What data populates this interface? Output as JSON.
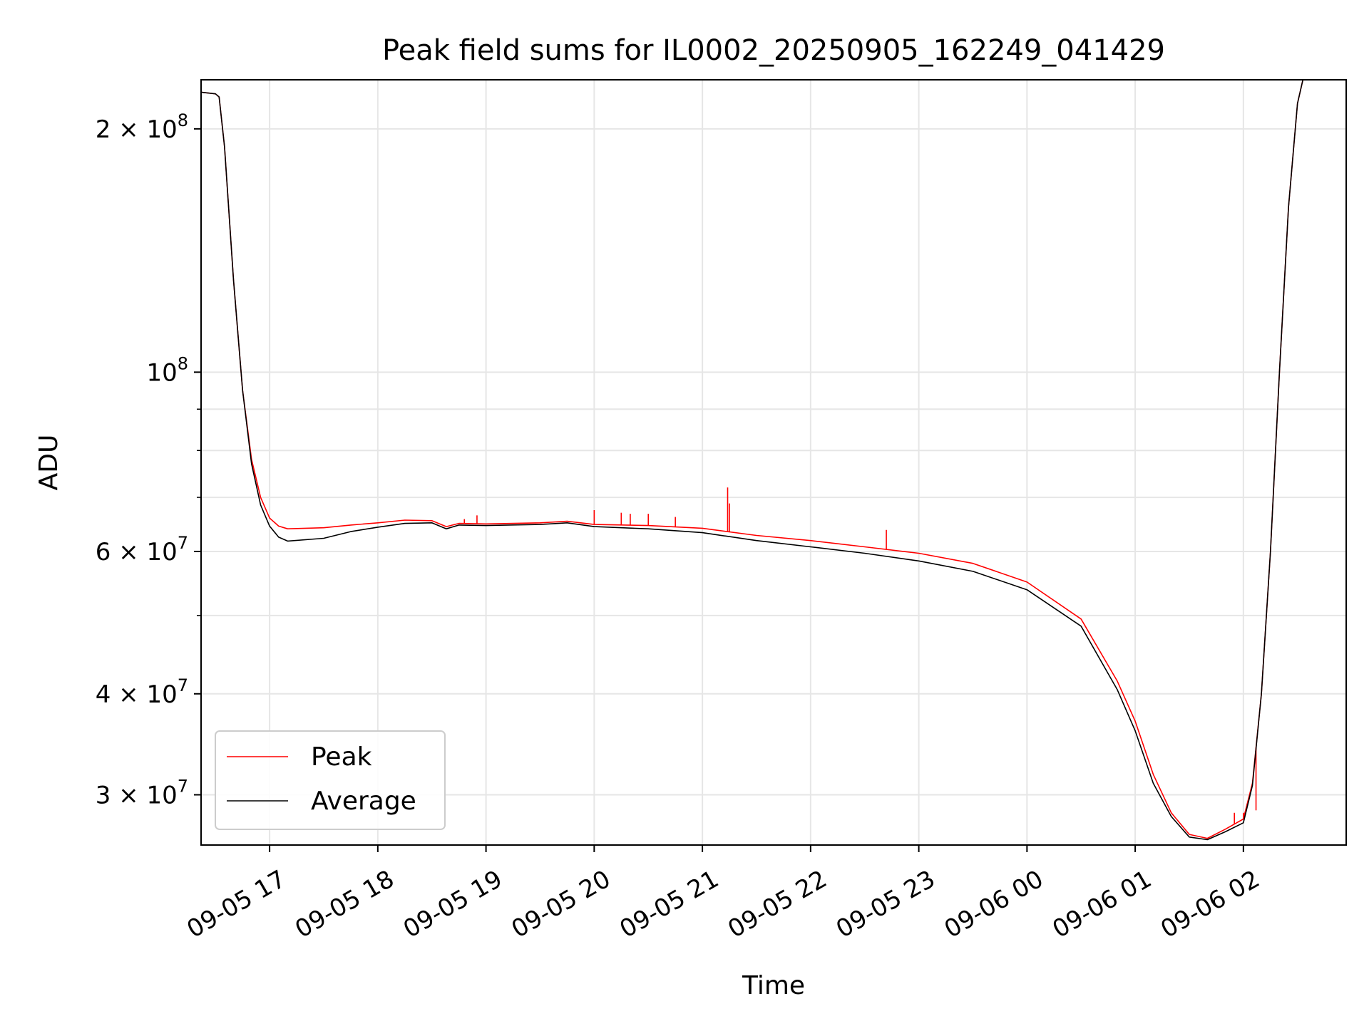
{
  "chart_data": {
    "type": "line",
    "title": "Peak field sums for IL0002_20250905_162249_041429",
    "xlabel": "Time",
    "ylabel": "ADU",
    "y_scale": "log",
    "ylim": [
      26000000,
      230000000
    ],
    "xlim": [
      "2025-09-05 16:22",
      "2025-09-06 02:57"
    ],
    "grid": true,
    "legend_position": "lower-left",
    "x_ticks": [
      {
        "t": "2025-09-05 17:00",
        "label": "09-05 17"
      },
      {
        "t": "2025-09-05 18:00",
        "label": "09-05 18"
      },
      {
        "t": "2025-09-05 19:00",
        "label": "09-05 19"
      },
      {
        "t": "2025-09-05 20:00",
        "label": "09-05 20"
      },
      {
        "t": "2025-09-05 21:00",
        "label": "09-05 21"
      },
      {
        "t": "2025-09-05 22:00",
        "label": "09-05 22"
      },
      {
        "t": "2025-09-05 23:00",
        "label": "09-05 23"
      },
      {
        "t": "2025-09-06 00:00",
        "label": "09-06 00"
      },
      {
        "t": "2025-09-06 01:00",
        "label": "09-06 01"
      },
      {
        "t": "2025-09-06 02:00",
        "label": "09-06 02"
      }
    ],
    "y_ticks": [
      {
        "value": 30000000,
        "mant": "3",
        "exp": "7"
      },
      {
        "value": 40000000,
        "mant": "4",
        "exp": "7"
      },
      {
        "value": 60000000,
        "mant": "6",
        "exp": "7"
      },
      {
        "value": 100000000,
        "mant": "",
        "exp": "8"
      },
      {
        "value": 200000000,
        "mant": "2",
        "exp": "8"
      }
    ],
    "y_minor_ticks": [
      50000000,
      70000000,
      80000000,
      90000000
    ],
    "series": [
      {
        "name": "Peak",
        "color": "#ff0000",
        "points": [
          [
            "2025-09-05 16:22",
            222000000
          ],
          [
            "2025-09-05 16:30",
            221000000
          ],
          [
            "2025-09-05 16:32",
            219000000
          ],
          [
            "2025-09-05 16:35",
            190000000
          ],
          [
            "2025-09-05 16:40",
            130000000
          ],
          [
            "2025-09-05 16:45",
            95000000
          ],
          [
            "2025-09-05 16:50",
            78000000
          ],
          [
            "2025-09-05 16:55",
            70000000
          ],
          [
            "2025-09-05 17:00",
            66000000
          ],
          [
            "2025-09-05 17:05",
            64500000
          ],
          [
            "2025-09-05 17:10",
            64000000
          ],
          [
            "2025-09-05 17:30",
            64200000
          ],
          [
            "2025-09-05 17:45",
            64700000
          ],
          [
            "2025-09-05 18:00",
            65100000
          ],
          [
            "2025-09-05 18:15",
            65600000
          ],
          [
            "2025-09-05 18:30",
            65500000
          ],
          [
            "2025-09-05 18:38",
            64400000
          ],
          [
            "2025-09-05 18:45",
            65000000
          ],
          [
            "2025-09-05 19:00",
            64900000
          ],
          [
            "2025-09-05 19:30",
            65100000
          ],
          [
            "2025-09-05 19:45",
            65400000
          ],
          [
            "2025-09-05 20:00",
            64800000
          ],
          [
            "2025-09-05 20:30",
            64600000
          ],
          [
            "2025-09-05 21:00",
            64100000
          ],
          [
            "2025-09-05 21:30",
            62800000
          ],
          [
            "2025-09-05 22:00",
            61900000
          ],
          [
            "2025-09-05 22:30",
            60800000
          ],
          [
            "2025-09-05 23:00",
            59700000
          ],
          [
            "2025-09-05 23:30",
            58000000
          ],
          [
            "2025-09-06 00:00",
            55000000
          ],
          [
            "2025-09-06 00:30",
            49500000
          ],
          [
            "2025-09-06 00:50",
            41500000
          ],
          [
            "2025-09-06 01:00",
            37000000
          ],
          [
            "2025-09-06 01:10",
            31800000
          ],
          [
            "2025-09-06 01:20",
            28500000
          ],
          [
            "2025-09-06 01:30",
            26800000
          ],
          [
            "2025-09-06 01:40",
            26500000
          ],
          [
            "2025-09-06 01:50",
            27200000
          ],
          [
            "2025-09-06 02:00",
            28000000
          ],
          [
            "2025-09-06 02:05",
            31000000
          ],
          [
            "2025-09-06 02:10",
            40000000
          ],
          [
            "2025-09-06 02:15",
            60000000
          ],
          [
            "2025-09-06 02:20",
            100000000
          ],
          [
            "2025-09-06 02:25",
            160000000
          ],
          [
            "2025-09-06 02:30",
            215000000
          ],
          [
            "2025-09-06 02:33",
            230000000
          ]
        ],
        "spikes": [
          [
            "2025-09-05 20:00",
            67500000
          ],
          [
            "2025-09-05 20:15",
            67000000
          ],
          [
            "2025-09-05 20:20",
            66800000
          ],
          [
            "2025-09-05 20:30",
            66800000
          ],
          [
            "2025-09-05 20:45",
            66200000
          ],
          [
            "2025-09-05 21:14",
            72000000
          ],
          [
            "2025-09-05 21:15",
            68800000
          ],
          [
            "2025-09-05 22:42",
            63800000
          ],
          [
            "2025-09-05 18:55",
            66500000
          ],
          [
            "2025-09-05 18:48",
            65800000
          ],
          [
            "2025-09-06 01:55",
            28500000
          ],
          [
            "2025-09-06 02:00",
            28500000
          ],
          [
            "2025-09-06 02:07",
            28700000
          ]
        ]
      },
      {
        "name": "Average",
        "color": "#000000",
        "points": [
          [
            "2025-09-05 16:22",
            222000000
          ],
          [
            "2025-09-05 16:30",
            221000000
          ],
          [
            "2025-09-05 16:32",
            219000000
          ],
          [
            "2025-09-05 16:35",
            190000000
          ],
          [
            "2025-09-05 16:40",
            130000000
          ],
          [
            "2025-09-05 16:45",
            95000000
          ],
          [
            "2025-09-05 16:50",
            77000000
          ],
          [
            "2025-09-05 16:55",
            68500000
          ],
          [
            "2025-09-05 17:00",
            64500000
          ],
          [
            "2025-09-05 17:05",
            62500000
          ],
          [
            "2025-09-05 17:10",
            61800000
          ],
          [
            "2025-09-05 17:30",
            62300000
          ],
          [
            "2025-09-05 17:45",
            63500000
          ],
          [
            "2025-09-05 18:00",
            64300000
          ],
          [
            "2025-09-05 18:15",
            65000000
          ],
          [
            "2025-09-05 18:30",
            65100000
          ],
          [
            "2025-09-05 18:38",
            64000000
          ],
          [
            "2025-09-05 18:45",
            64700000
          ],
          [
            "2025-09-05 19:00",
            64600000
          ],
          [
            "2025-09-05 19:30",
            64800000
          ],
          [
            "2025-09-05 19:45",
            65100000
          ],
          [
            "2025-09-05 20:00",
            64400000
          ],
          [
            "2025-09-05 20:30",
            64000000
          ],
          [
            "2025-09-05 21:00",
            63300000
          ],
          [
            "2025-09-05 21:30",
            61900000
          ],
          [
            "2025-09-05 22:00",
            60800000
          ],
          [
            "2025-09-05 22:30",
            59700000
          ],
          [
            "2025-09-05 23:00",
            58400000
          ],
          [
            "2025-09-05 23:30",
            56700000
          ],
          [
            "2025-09-06 00:00",
            53800000
          ],
          [
            "2025-09-06 00:30",
            48500000
          ],
          [
            "2025-09-06 00:50",
            40500000
          ],
          [
            "2025-09-06 01:00",
            36000000
          ],
          [
            "2025-09-06 01:10",
            31000000
          ],
          [
            "2025-09-06 01:20",
            28200000
          ],
          [
            "2025-09-06 01:30",
            26600000
          ],
          [
            "2025-09-06 01:40",
            26400000
          ],
          [
            "2025-09-06 01:50",
            27000000
          ],
          [
            "2025-09-06 02:00",
            27700000
          ],
          [
            "2025-09-06 02:05",
            30800000
          ],
          [
            "2025-09-06 02:10",
            40000000
          ],
          [
            "2025-09-06 02:15",
            60000000
          ],
          [
            "2025-09-06 02:20",
            100000000
          ],
          [
            "2025-09-06 02:25",
            160000000
          ],
          [
            "2025-09-06 02:30",
            215000000
          ],
          [
            "2025-09-06 02:33",
            230000000
          ]
        ]
      }
    ]
  }
}
